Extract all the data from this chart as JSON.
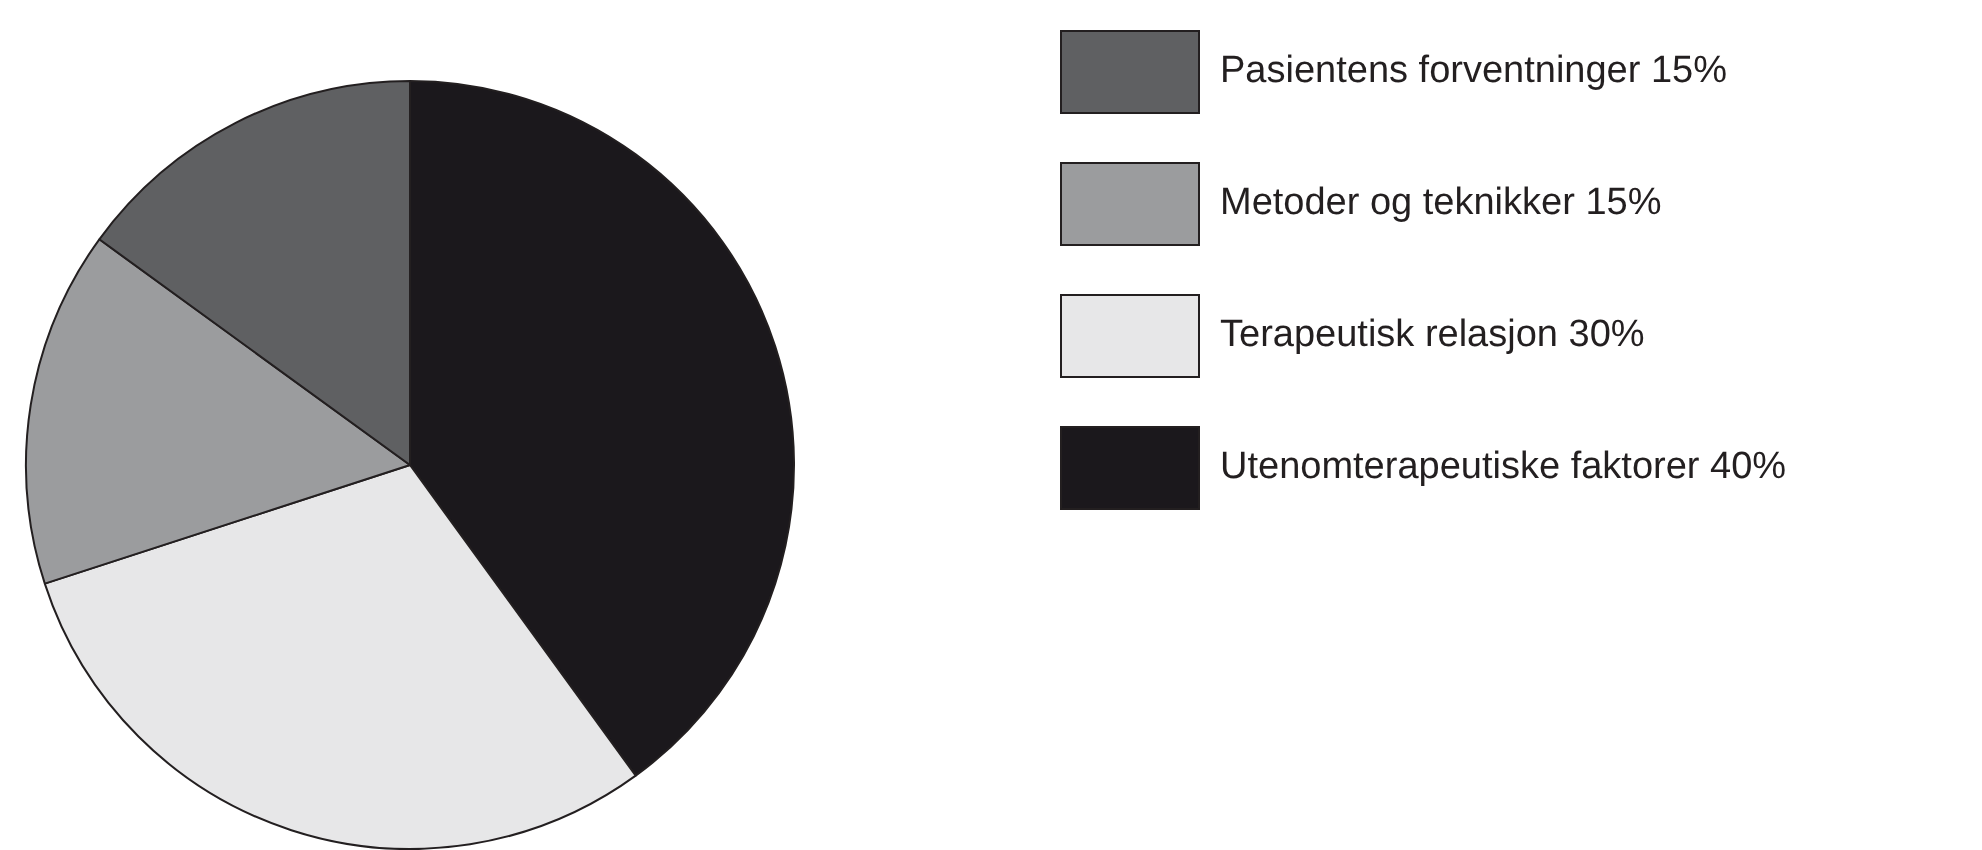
{
  "chart_data": {
    "type": "pie",
    "categories": [
      "Pasientens forventninger 15%",
      "Metoder og teknikker 15%",
      "Terapeutisk relasjon 30%",
      "Utenomterapeutiske faktorer 40%"
    ],
    "values": [
      15,
      15,
      30,
      40
    ],
    "colors": [
      "#5f6062",
      "#9b9c9e",
      "#e7e7e8",
      "#1b181c"
    ],
    "legend": "top right"
  }
}
